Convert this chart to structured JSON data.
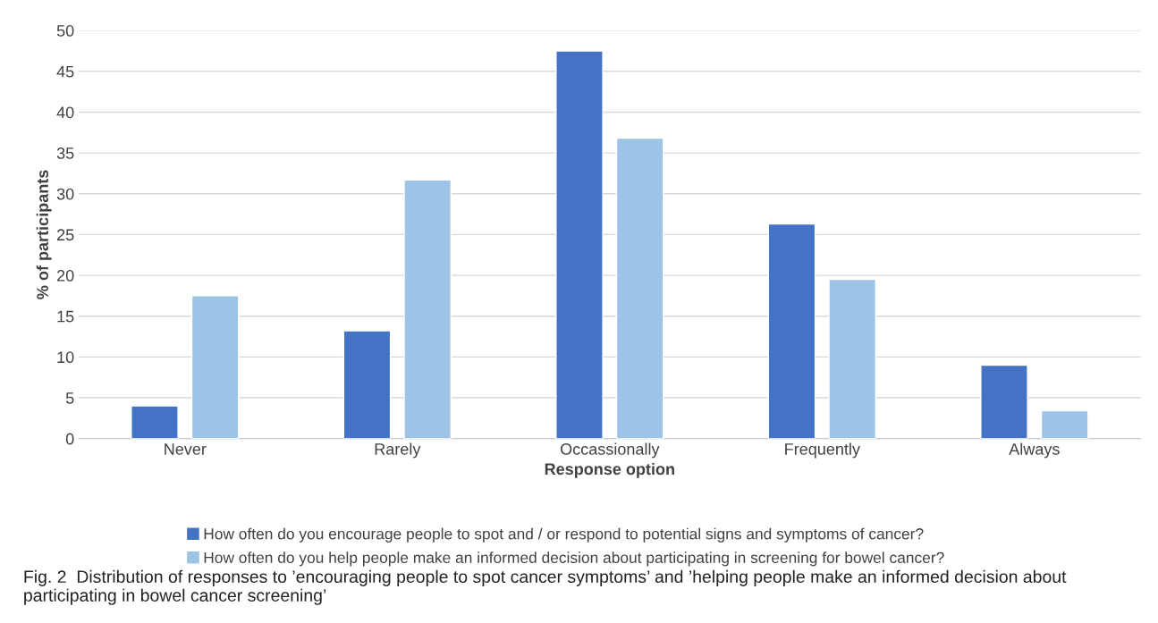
{
  "chart_data": {
    "type": "bar",
    "xlabel": "Response option",
    "ylabel": "% of participants",
    "categories": [
      "Never",
      "Rarely",
      "Occassionally",
      "Frequently",
      "Always"
    ],
    "series": [
      {
        "name": "How often do you encourage people to spot and / or respond to potential signs and symptoms of cancer?",
        "color": "#4472c4",
        "values": [
          4,
          13.2,
          47.5,
          26.3,
          9
        ]
      },
      {
        "name": "How often do you help people make an informed decision about participating in screening for bowel cancer?",
        "color": "#9dc3e6",
        "values": [
          17.5,
          31.7,
          36.8,
          19.5,
          3.4
        ]
      }
    ],
    "ylim": [
      0,
      50
    ],
    "yticks": [
      0,
      5,
      10,
      15,
      20,
      25,
      30,
      35,
      40,
      45,
      50
    ],
    "grid": "y",
    "legend": "bottom",
    "annotations": [
      "Fig. 2  Distribution of responses to ’encouraging people to spot cancer symptoms’ and ’helping people make an informed decision about participating in bowel cancer screening’"
    ]
  }
}
